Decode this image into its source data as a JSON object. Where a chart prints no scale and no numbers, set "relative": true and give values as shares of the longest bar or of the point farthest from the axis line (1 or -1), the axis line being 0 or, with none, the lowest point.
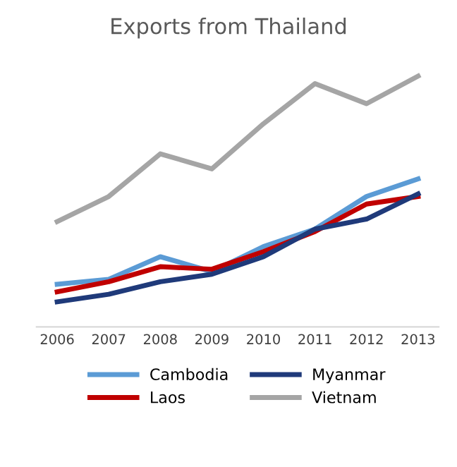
{
  "chart_data": {
    "type": "line",
    "title": "Exports from Thailand",
    "relative": true,
    "categories": [
      "2006",
      "2007",
      "2008",
      "2009",
      "2010",
      "2011",
      "2012",
      "2013"
    ],
    "series": [
      {
        "name": "Cambodia",
        "color": "#5b9bd5",
        "values": [
          0.17,
          0.19,
          0.28,
          0.22,
          0.32,
          0.39,
          0.52,
          0.59
        ]
      },
      {
        "name": "Laos",
        "color": "#c00000",
        "values": [
          0.14,
          0.18,
          0.24,
          0.23,
          0.3,
          0.38,
          0.49,
          0.52
        ]
      },
      {
        "name": "Myanmar",
        "color": "#1f3a7a",
        "values": [
          0.1,
          0.13,
          0.18,
          0.21,
          0.28,
          0.39,
          0.43,
          0.53
        ]
      },
      {
        "name": "Vietnam",
        "color": "#a5a5a5",
        "values": [
          0.42,
          0.52,
          0.69,
          0.63,
          0.81,
          0.97,
          0.89,
          1
        ]
      }
    ],
    "legend": "bottom",
    "marker": "none"
  }
}
